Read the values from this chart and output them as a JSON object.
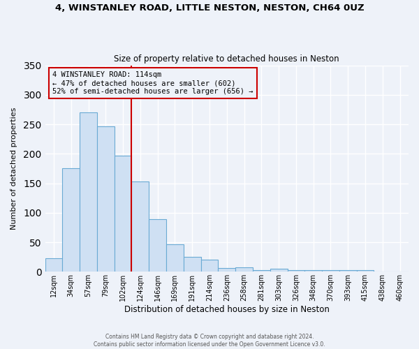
{
  "title1": "4, WINSTANLEY ROAD, LITTLE NESTON, NESTON, CH64 0UZ",
  "title2": "Size of property relative to detached houses in Neston",
  "xlabel": "Distribution of detached houses by size in Neston",
  "ylabel": "Number of detached properties",
  "bar_labels": [
    "12sqm",
    "34sqm",
    "57sqm",
    "79sqm",
    "102sqm",
    "124sqm",
    "146sqm",
    "169sqm",
    "191sqm",
    "214sqm",
    "236sqm",
    "258sqm",
    "281sqm",
    "303sqm",
    "326sqm",
    "348sqm",
    "370sqm",
    "393sqm",
    "415sqm",
    "438sqm",
    "460sqm"
  ],
  "bar_heights": [
    23,
    175,
    270,
    246,
    197,
    153,
    89,
    47,
    25,
    20,
    6,
    8,
    3,
    5,
    3,
    3,
    3,
    3,
    3,
    0,
    0
  ],
  "bar_color": "#cfe0f3",
  "bar_edge_color": "#6aaad4",
  "vline_color": "#cc0000",
  "annotation_title": "4 WINSTANLEY ROAD: 114sqm",
  "annotation_line1": "← 47% of detached houses are smaller (602)",
  "annotation_line2": "52% of semi-detached houses are larger (656) →",
  "annotation_box_color": "#cc0000",
  "ylim": [
    0,
    350
  ],
  "yticks": [
    0,
    50,
    100,
    150,
    200,
    250,
    300,
    350
  ],
  "footer1": "Contains HM Land Registry data © Crown copyright and database right 2024.",
  "footer2": "Contains public sector information licensed under the Open Government Licence v3.0.",
  "background_color": "#eef2f9",
  "grid_color": "#ffffff"
}
